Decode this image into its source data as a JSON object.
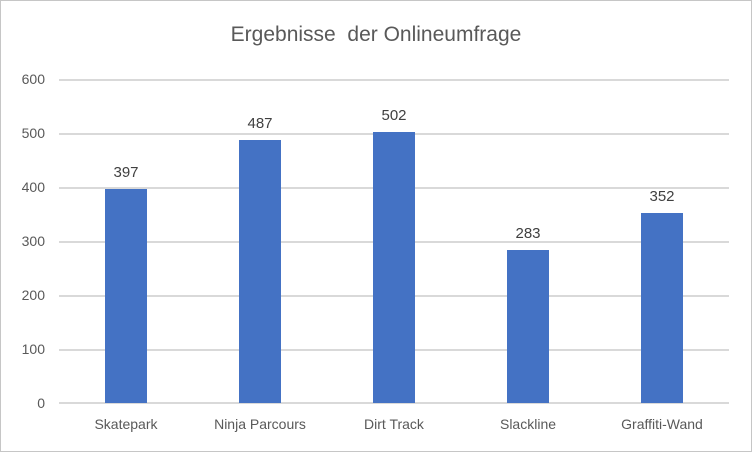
{
  "chart": {
    "title": "Ergebnisse  der Onlineumfrage"
  },
  "chart_data": {
    "type": "bar",
    "title": "Ergebnisse  der Onlineumfrage",
    "categories": [
      "Skatepark",
      "Ninja Parcours",
      "Dirt Track",
      "Slackline",
      "Graffiti-Wand"
    ],
    "values": [
      397,
      487,
      502,
      283,
      352
    ],
    "xlabel": "",
    "ylabel": "",
    "ylim": [
      0,
      600
    ],
    "yticks": [
      0,
      100,
      200,
      300,
      400,
      500,
      600
    ],
    "grid": true,
    "legend": false,
    "data_labels": true,
    "colors": {
      "bar": "#4472c4",
      "gridline": "#d9d9d9",
      "axis_line": "#d9d9d9",
      "title_text": "#595959",
      "axis_label_text": "#595959",
      "data_label_text": "#404040",
      "background": "#ffffff",
      "frame_border": "#c6c6c6"
    }
  }
}
